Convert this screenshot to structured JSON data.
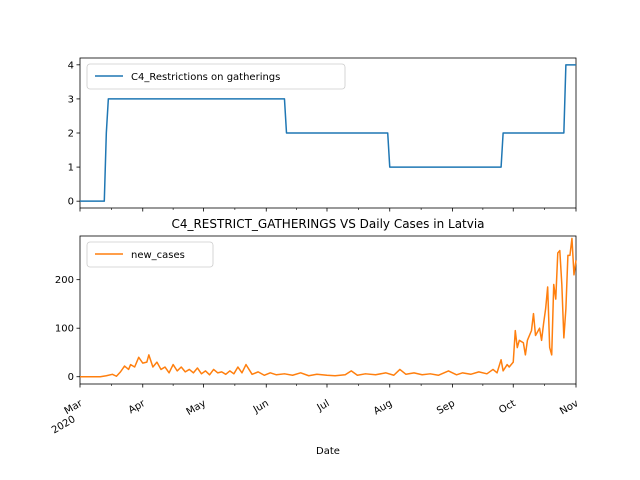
{
  "title": "C4_RESTRICT_GATHERINGS VS Daily Cases in Latvia",
  "xlabel": "Date",
  "colors": {
    "series1": "#1f77b4",
    "series2": "#ff7f0e"
  },
  "chart_data": [
    {
      "type": "line",
      "x_type": "date",
      "xlim": [
        "2020-03-01",
        "2020-11-01"
      ],
      "ylim": [
        -0.2,
        4.2
      ],
      "yticks": [
        0,
        1,
        2,
        3,
        4
      ],
      "legend": "upper-left",
      "series": [
        {
          "name": "C4_Restrictions on gatherings",
          "x": [
            "2020-03-01",
            "2020-03-13",
            "2020-03-14",
            "2020-03-15",
            "2020-06-10",
            "2020-06-11",
            "2020-07-31",
            "2020-08-01",
            "2020-09-25",
            "2020-09-26",
            "2020-10-26",
            "2020-10-27",
            "2020-11-01"
          ],
          "y": [
            0,
            0,
            2,
            3,
            3,
            2,
            2,
            1,
            1,
            2,
            2,
            4,
            4
          ]
        }
      ]
    },
    {
      "type": "line",
      "x_type": "date",
      "xlim": [
        "2020-03-01",
        "2020-11-01"
      ],
      "ylim": [
        -15,
        290
      ],
      "yticks": [
        0,
        100,
        200
      ],
      "xticks": [
        {
          "date": "2020-03-01",
          "label": "Mar",
          "label2": "2020"
        },
        {
          "date": "2020-04-01",
          "label": "Apr"
        },
        {
          "date": "2020-05-01",
          "label": "May"
        },
        {
          "date": "2020-06-01",
          "label": "Jun"
        },
        {
          "date": "2020-07-01",
          "label": "Jul"
        },
        {
          "date": "2020-08-01",
          "label": "Aug"
        },
        {
          "date": "2020-09-01",
          "label": "Sep"
        },
        {
          "date": "2020-10-01",
          "label": "Oct"
        },
        {
          "date": "2020-11-01",
          "label": "Nov"
        }
      ],
      "legend": "upper-left",
      "series": [
        {
          "name": "new_cases",
          "x": [
            "2020-03-01",
            "2020-03-11",
            "2020-03-14",
            "2020-03-17",
            "2020-03-19",
            "2020-03-21",
            "2020-03-23",
            "2020-03-25",
            "2020-03-26",
            "2020-03-28",
            "2020-03-30",
            "2020-04-01",
            "2020-04-03",
            "2020-04-04",
            "2020-04-06",
            "2020-04-08",
            "2020-04-10",
            "2020-04-12",
            "2020-04-14",
            "2020-04-16",
            "2020-04-18",
            "2020-04-20",
            "2020-04-22",
            "2020-04-24",
            "2020-04-26",
            "2020-04-28",
            "2020-04-30",
            "2020-05-02",
            "2020-05-04",
            "2020-05-06",
            "2020-05-08",
            "2020-05-10",
            "2020-05-12",
            "2020-05-14",
            "2020-05-16",
            "2020-05-18",
            "2020-05-20",
            "2020-05-22",
            "2020-05-25",
            "2020-05-28",
            "2020-05-31",
            "2020-06-03",
            "2020-06-06",
            "2020-06-10",
            "2020-06-14",
            "2020-06-18",
            "2020-06-22",
            "2020-06-26",
            "2020-07-01",
            "2020-07-05",
            "2020-07-10",
            "2020-07-13",
            "2020-07-16",
            "2020-07-20",
            "2020-07-25",
            "2020-07-30",
            "2020-08-03",
            "2020-08-06",
            "2020-08-09",
            "2020-08-13",
            "2020-08-17",
            "2020-08-21",
            "2020-08-25",
            "2020-08-30",
            "2020-09-03",
            "2020-09-06",
            "2020-09-10",
            "2020-09-14",
            "2020-09-18",
            "2020-09-21",
            "2020-09-23",
            "2020-09-25",
            "2020-09-26",
            "2020-09-28",
            "2020-09-29",
            "2020-10-01",
            "2020-10-02",
            "2020-10-03",
            "2020-10-04",
            "2020-10-06",
            "2020-10-07",
            "2020-10-08",
            "2020-10-10",
            "2020-10-11",
            "2020-10-12",
            "2020-10-14",
            "2020-10-15",
            "2020-10-16",
            "2020-10-17",
            "2020-10-18",
            "2020-10-19",
            "2020-10-20",
            "2020-10-21",
            "2020-10-22",
            "2020-10-23",
            "2020-10-24",
            "2020-10-25",
            "2020-10-26",
            "2020-10-27",
            "2020-10-28",
            "2020-10-29",
            "2020-10-30",
            "2020-10-31",
            "2020-11-01"
          ],
          "y": [
            0,
            0,
            2,
            5,
            1,
            10,
            22,
            15,
            25,
            20,
            40,
            28,
            30,
            45,
            20,
            30,
            15,
            20,
            8,
            25,
            12,
            20,
            10,
            15,
            8,
            18,
            6,
            12,
            4,
            15,
            8,
            10,
            5,
            12,
            6,
            20,
            8,
            25,
            5,
            10,
            3,
            8,
            4,
            6,
            3,
            8,
            2,
            5,
            3,
            2,
            4,
            12,
            3,
            6,
            4,
            8,
            3,
            15,
            5,
            8,
            4,
            6,
            3,
            12,
            4,
            8,
            5,
            10,
            6,
            15,
            8,
            35,
            12,
            25,
            20,
            30,
            95,
            60,
            75,
            70,
            45,
            75,
            95,
            130,
            85,
            100,
            75,
            110,
            140,
            185,
            60,
            45,
            190,
            160,
            255,
            260,
            190,
            80,
            140,
            250,
            250,
            285,
            210,
            240
          ]
        }
      ]
    }
  ]
}
